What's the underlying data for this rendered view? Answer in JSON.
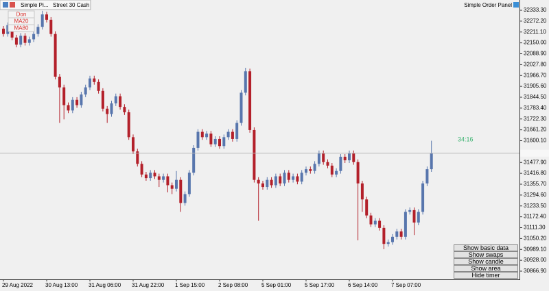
{
  "chart_data": {
    "type": "candlestick",
    "categories": [
      "29 Aug 2022",
      null,
      null,
      null,
      null,
      null,
      null,
      null,
      null,
      null,
      "30 Aug 13:00",
      null,
      null,
      null,
      null,
      null,
      null,
      null,
      null,
      null,
      "31 Aug 06:00",
      null,
      null,
      null,
      null,
      null,
      null,
      null,
      null,
      null,
      "31 Aug 22:00",
      null,
      null,
      null,
      null,
      null,
      null,
      null,
      null,
      null,
      "1 Sep 15:00",
      null,
      null,
      null,
      null,
      null,
      null,
      null,
      null,
      null,
      "2 Sep 08:00",
      null,
      null,
      null,
      null,
      null,
      null,
      null,
      null,
      null,
      "5 Sep 01:00",
      null,
      null,
      null,
      null,
      null,
      null,
      null,
      null,
      null,
      "5 Sep 17:00",
      null,
      null,
      null,
      null,
      null,
      null,
      null,
      null,
      null,
      "6 Sep 14:00",
      null,
      null,
      null,
      null,
      null,
      null,
      null,
      null,
      null,
      "7 Sep 07:00",
      null,
      null,
      null,
      null,
      null,
      null,
      null,
      null,
      null
    ],
    "open": [
      32230,
      32200,
      32250,
      32180,
      32140,
      32190,
      32150,
      32170,
      32200,
      32240,
      32310,
      32280,
      32200,
      31960,
      31900,
      31800,
      31770,
      31830,
      31800,
      31860,
      31900,
      31950,
      31930,
      31880,
      31780,
      31750,
      31810,
      31850,
      31790,
      31760,
      31620,
      31540,
      31470,
      31410,
      31390,
      31420,
      31400,
      31380,
      31400,
      31350,
      31330,
      31380,
      31250,
      31300,
      31420,
      31560,
      31650,
      31620,
      31640,
      31580,
      31610,
      31570,
      31620,
      31650,
      31610,
      31700,
      31870,
      31990,
      31660,
      31380,
      31360,
      31340,
      31380,
      31350,
      31400,
      31360,
      31420,
      31380,
      31400,
      31370,
      31420,
      31440,
      31430,
      31470,
      31530,
      31480,
      31460,
      31410,
      31430,
      31510,
      31490,
      31530,
      31480,
      31360,
      31270,
      31180,
      31130,
      31150,
      31110,
      31020,
      31030,
      31060,
      31090,
      31060,
      31200,
      31210,
      31140,
      31200,
      31360,
      31440
    ],
    "high": [
      32245,
      32265,
      32265,
      32195,
      32205,
      32205,
      32185,
      32215,
      32255,
      32330,
      32325,
      32295,
      32215,
      31975,
      31915,
      31815,
      31845,
      31845,
      31875,
      31915,
      31965,
      31965,
      31945,
      31895,
      31795,
      31825,
      31865,
      31865,
      31805,
      31775,
      31635,
      31555,
      31485,
      31425,
      31435,
      31435,
      31415,
      31415,
      31415,
      31365,
      31430,
      31395,
      31315,
      31435,
      31575,
      31665,
      31665,
      31655,
      31655,
      31625,
      31625,
      31635,
      31665,
      31665,
      31715,
      31885,
      32010,
      32005,
      31675,
      31395,
      31375,
      31395,
      31395,
      31415,
      31415,
      31435,
      31435,
      31415,
      31415,
      31435,
      31455,
      31455,
      31485,
      31545,
      31545,
      31495,
      31475,
      31445,
      31525,
      31525,
      31545,
      31545,
      31495,
      31375,
      31285,
      31195,
      31165,
      31165,
      31125,
      31045,
      31075,
      31105,
      31105,
      31215,
      31225,
      31225,
      31215,
      31375,
      31455,
      31600
    ],
    "low": [
      32185,
      32185,
      32165,
      32125,
      32125,
      32135,
      32135,
      32155,
      32185,
      32225,
      32265,
      32185,
      31945,
      31700,
      31720,
      31755,
      31755,
      31785,
      31785,
      31845,
      31885,
      31915,
      31865,
      31765,
      31700,
      31735,
      31795,
      31775,
      31745,
      31605,
      31525,
      31455,
      31395,
      31375,
      31375,
      31385,
      31340,
      31365,
      31310,
      31300,
      31315,
      31200,
      31235,
      31285,
      31405,
      31545,
      31605,
      31605,
      31565,
      31565,
      31555,
      31555,
      31605,
      31595,
      31595,
      31685,
      31855,
      31645,
      31365,
      31150,
      31325,
      31325,
      31335,
      31335,
      31345,
      31345,
      31365,
      31365,
      31355,
      31355,
      31405,
      31415,
      31415,
      31455,
      31465,
      31445,
      31395,
      31395,
      31415,
      31475,
      31475,
      31465,
      31040,
      31200,
      31165,
      31115,
      31115,
      31095,
      30990,
      31005,
      31015,
      31045,
      31045,
      31045,
      31185,
      31070,
      31125,
      31185,
      31345,
      31425
    ],
    "close": [
      32200,
      32250,
      32180,
      32140,
      32190,
      32150,
      32170,
      32200,
      32240,
      32310,
      32280,
      32200,
      31960,
      31900,
      31800,
      31770,
      31830,
      31800,
      31860,
      31900,
      31950,
      31930,
      31880,
      31780,
      31750,
      31810,
      31850,
      31790,
      31760,
      31620,
      31540,
      31470,
      31410,
      31390,
      31420,
      31400,
      31380,
      31400,
      31350,
      31330,
      31380,
      31250,
      31300,
      31420,
      31560,
      31650,
      31620,
      31640,
      31580,
      31610,
      31570,
      31620,
      31650,
      31610,
      31700,
      31870,
      31990,
      31660,
      31380,
      31360,
      31340,
      31380,
      31350,
      31400,
      31360,
      31420,
      31380,
      31400,
      31370,
      31420,
      31440,
      31430,
      31470,
      31530,
      31480,
      31460,
      31410,
      31430,
      31510,
      31490,
      31530,
      31480,
      31360,
      31270,
      31180,
      31130,
      31150,
      31110,
      31020,
      31030,
      31060,
      31090,
      31060,
      31200,
      31210,
      31140,
      31200,
      31360,
      31440,
      31530
    ],
    "up_color": "#5876ad",
    "down_color": "#b3202a",
    "ylim": [
      30866.9,
      32333.3
    ],
    "yticks": [
      {
        "value": 32333.3,
        "label": "32333.30"
      },
      {
        "value": 32272.2,
        "label": "32272.20"
      },
      {
        "value": 32211.1,
        "label": "32211.10"
      },
      {
        "value": 32150,
        "label": "32150.00"
      },
      {
        "value": 32088.9,
        "label": "32088.90"
      },
      {
        "value": 32027.8,
        "label": "32027.80"
      },
      {
        "value": 31966.7,
        "label": "31966.70"
      },
      {
        "value": 31905.6,
        "label": "31905.60"
      },
      {
        "value": 31844.5,
        "label": "31844.50"
      },
      {
        "value": 31783.4,
        "label": "31783.40"
      },
      {
        "value": 31722.3,
        "label": "31722.30"
      },
      {
        "value": 31661.2,
        "label": "31661.20"
      },
      {
        "value": 31600.1,
        "label": "31600.10"
      },
      {
        "value": 31477.9,
        "label": "31477.90"
      },
      {
        "value": 31416.8,
        "label": "31416.80"
      },
      {
        "value": 31355.7,
        "label": "31355.70"
      },
      {
        "value": 31294.6,
        "label": "31294.60"
      },
      {
        "value": 31233.5,
        "label": "31233.50"
      },
      {
        "value": 31172.4,
        "label": "31172.40"
      },
      {
        "value": 31111.3,
        "label": "31111.30"
      },
      {
        "value": 31050.2,
        "label": "31050.20"
      },
      {
        "value": 30989.1,
        "label": "30989.10"
      },
      {
        "value": 30928,
        "label": "30928.00"
      },
      {
        "value": 30866.9,
        "label": "30866.90"
      }
    ],
    "grid": false
  },
  "ui": {
    "tab_title": "Simple Pi...",
    "symbol": "Street 30 Cash",
    "panel_title": "Simple Order Panel",
    "indicator_buttons": [
      "Don",
      "MA20",
      "MA80"
    ],
    "timer": "34:16",
    "panel_buttons": [
      "Show basic data",
      "Show swaps",
      "Show candle",
      "Show area",
      "Hide timer"
    ]
  }
}
